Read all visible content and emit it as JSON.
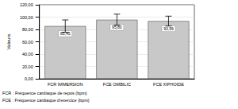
{
  "chart_data": {
    "type": "bar",
    "y_label": "Valeurs",
    "categories": [
      "FCR IMMERSION",
      "FCE OMBILIC",
      "FCE XIPHOIDE"
    ],
    "values": [
      85.45,
      95.8,
      93.56
    ],
    "value_labels": [
      "85,45",
      "95,80",
      "93,56"
    ],
    "errors": [
      10,
      9,
      8
    ],
    "color": "#c8c8c8",
    "data_labels": true,
    "ylim": [
      0,
      120
    ],
    "yticks": [
      {
        "value": 0,
        "label": "0,00"
      },
      {
        "value": 20,
        "label": "20,00"
      },
      {
        "value": 40,
        "label": "40,00"
      },
      {
        "value": 60,
        "label": "60,00"
      },
      {
        "value": 80,
        "label": "80,00"
      },
      {
        "value": 100,
        "label": "100,00"
      },
      {
        "value": 120,
        "label": "120,00"
      }
    ],
    "grid": true,
    "annotations": [
      "FCR : Fréquence cardiaque de repos (bpm)",
      "FCE : Fréquence cardiaque d'exercice (bpm)"
    ]
  }
}
